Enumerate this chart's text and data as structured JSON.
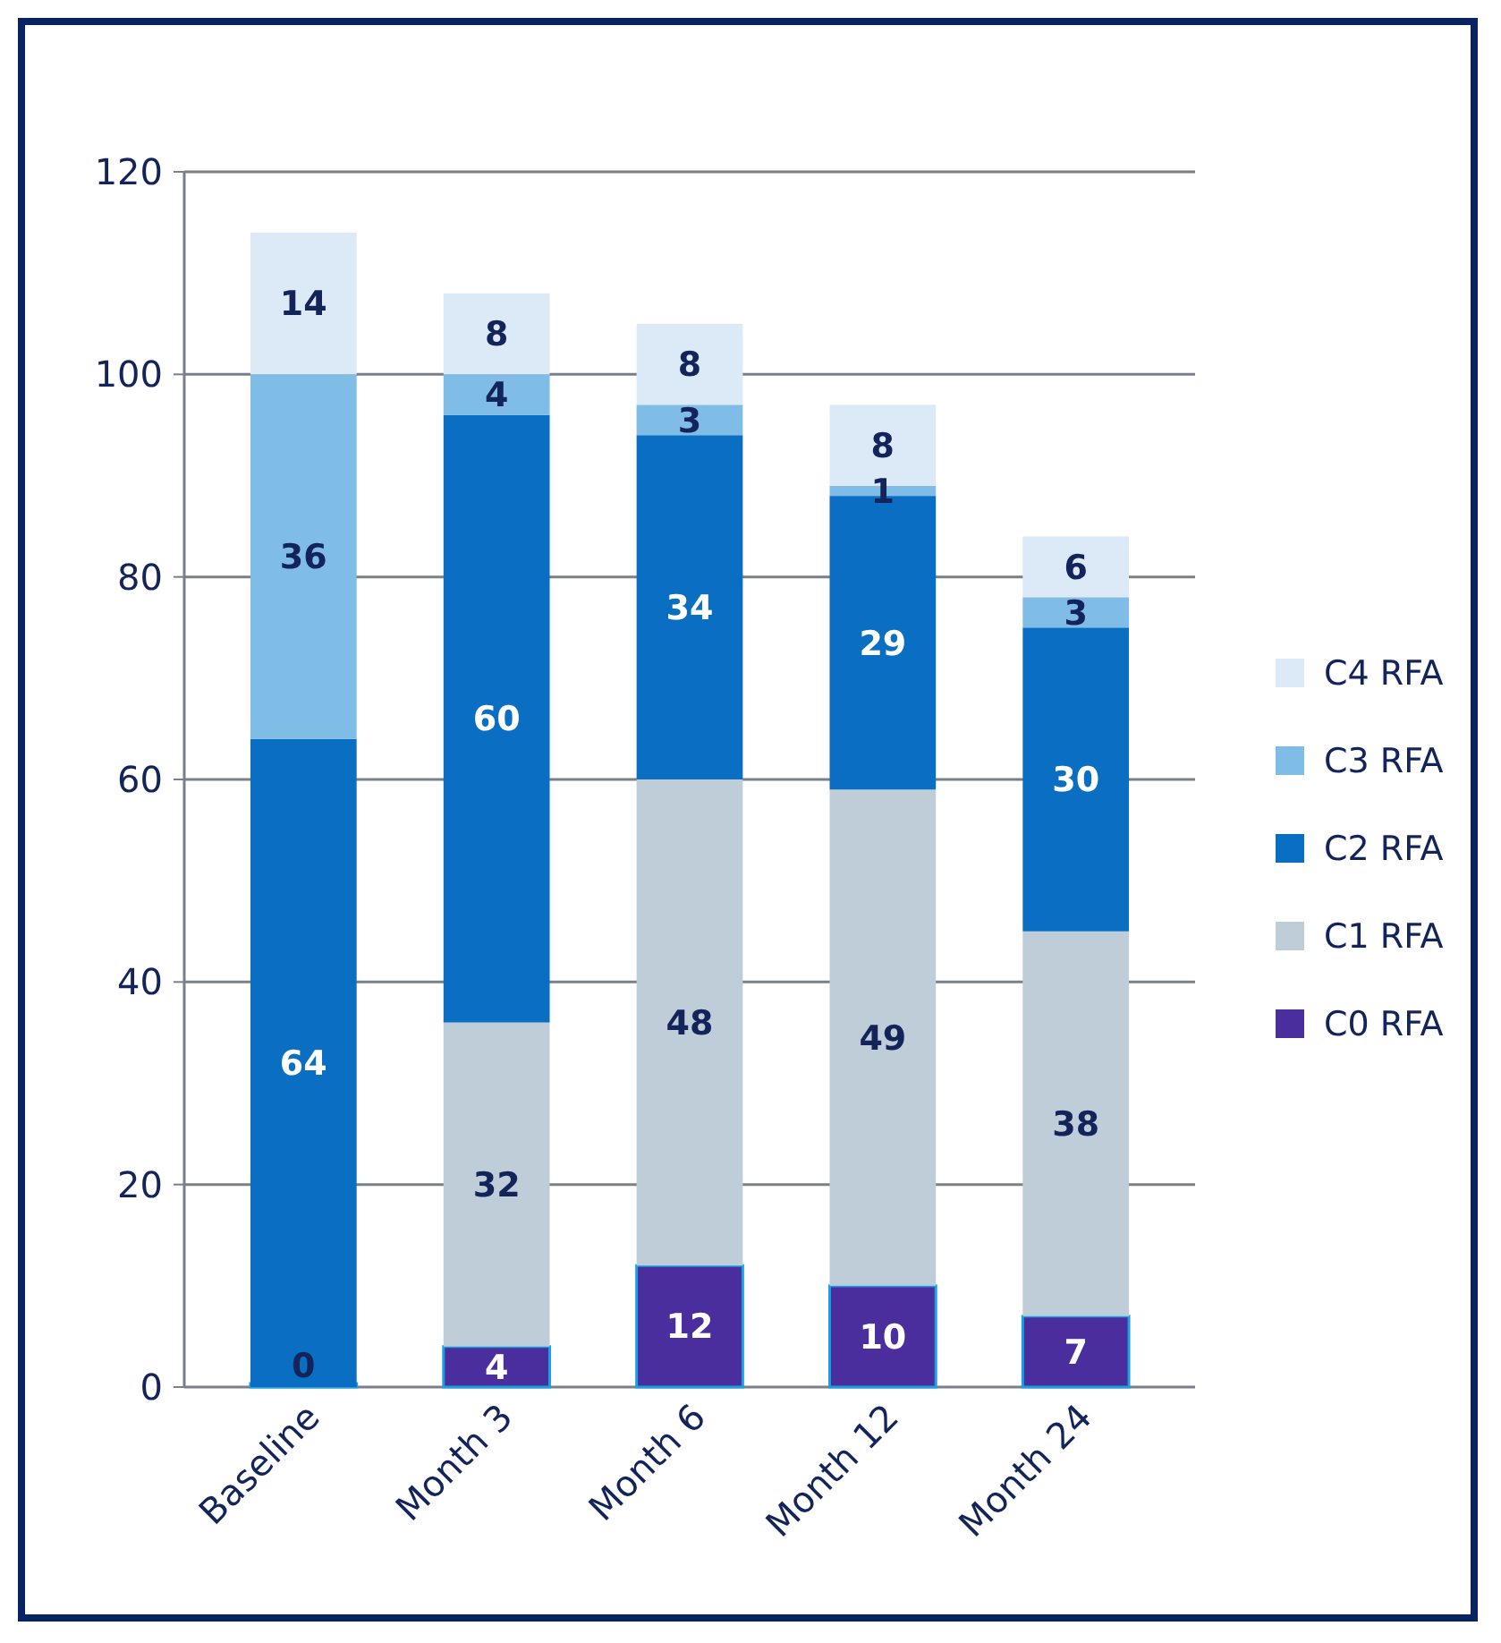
{
  "chart_data": {
    "type": "bar",
    "stacked": true,
    "categories": [
      "Baseline",
      "Month 3",
      "Month 6",
      "Month 12",
      "Month 24"
    ],
    "ylim": [
      0,
      120
    ],
    "yticks": [
      0,
      20,
      40,
      60,
      80,
      100,
      120
    ],
    "grid": "y",
    "legend": "right",
    "data_labels": true,
    "series": [
      {
        "name": "C0 RFA",
        "color": "#4b2e9e",
        "values": [
          0,
          4,
          12,
          10,
          7
        ]
      },
      {
        "name": "C1 RFA",
        "color": "#bfcdd8",
        "values": [
          null,
          32,
          48,
          49,
          38
        ]
      },
      {
        "name": "C2 RFA",
        "color": "#0a6fc2",
        "values": [
          64,
          60,
          34,
          29,
          30
        ]
      },
      {
        "name": "C3 RFA",
        "color": "#7fbde6",
        "values": [
          36,
          4,
          3,
          1,
          3
        ]
      },
      {
        "name": "C4 RFA",
        "color": "#dceaf8",
        "values": [
          14,
          8,
          8,
          8,
          6
        ]
      }
    ]
  }
}
